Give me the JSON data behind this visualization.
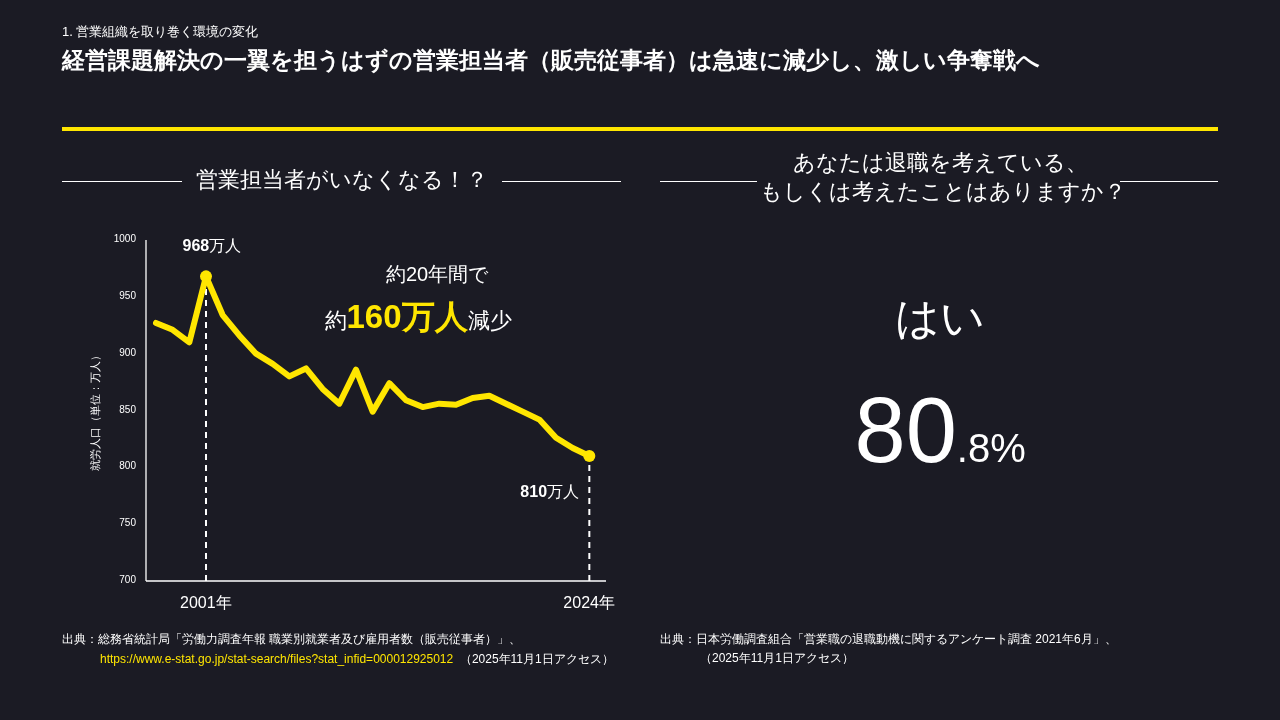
{
  "chart_data": [
    {
      "type": "line",
      "title": "営業担当者がいなくなる！？",
      "ylabel": "就労人口（単位：万人）",
      "x": [
        1998,
        1999,
        2000,
        2001,
        2002,
        2003,
        2004,
        2005,
        2006,
        2007,
        2008,
        2009,
        2010,
        2011,
        2012,
        2013,
        2014,
        2015,
        2016,
        2017,
        2018,
        2019,
        2020,
        2021,
        2022,
        2023,
        2024
      ],
      "series": [
        {
          "color": "#ffe600",
          "values": [
            927,
            921,
            910,
            968,
            934,
            916,
            900,
            891,
            880,
            887,
            869,
            856,
            886,
            849,
            874,
            859,
            853,
            856,
            855,
            861,
            863,
            856,
            849,
            842,
            826,
            817,
            810
          ]
        },
        {
          "type": "scatter",
          "color": "#ffe600",
          "marker": "circle",
          "x": [
            2001,
            2024
          ],
          "values": [
            968,
            810
          ]
        }
      ],
      "xlim": [
        1997.4,
        2025
      ],
      "ylim": [
        700,
        1000
      ],
      "xticks": [
        {
          "value": 2001,
          "label": "2001年"
        },
        {
          "value": 2024,
          "label": "2024年"
        }
      ],
      "yticks": [
        700,
        750,
        800,
        850,
        900,
        950,
        1000
      ],
      "marker": "none",
      "grid": false,
      "ref_lines": [
        {
          "axis": "x",
          "value": 2001,
          "color": "#ffffff",
          "line_style": "dashed"
        },
        {
          "axis": "x",
          "value": 2024,
          "color": "#ffffff",
          "line_style": "dashed"
        }
      ],
      "annotations": [
        "1. 営業組織を取り巻く環境の変化",
        "経営課題解決の一翼を担うはずの営業担当者（販売従事者）は急速に減少し、激しい争奪戦へ",
        {
          "text": "**968**万人",
          "x": 2001,
          "y": 968
        },
        {
          "text": "**810**万人",
          "x": 2024,
          "y": 810
        },
        "約20年間で",
        "約**160万人**減少",
        "出典：総務省統計局「労働力調査年報 職業別就業者及び雇用者数（販売従事者）」、",
        "https://www.e-stat.go.jp/stat-search/files?stat_infid=000012925012",
        "（2025年11月1日アクセス）"
      ]
    },
    {
      "type": "other",
      "title": "あなたは退職を考えている、もしくは考えたことはありますか？",
      "categories": [
        "はい"
      ],
      "values": [
        80.8
      ],
      "value_labels": [
        "80.8%"
      ],
      "annotations": [
        "出典：日本労働調査組合「営業職の退職動機に関するアンケート調査 2021年6月」、",
        "（2025年11月1日アクセス）"
      ]
    }
  ]
}
